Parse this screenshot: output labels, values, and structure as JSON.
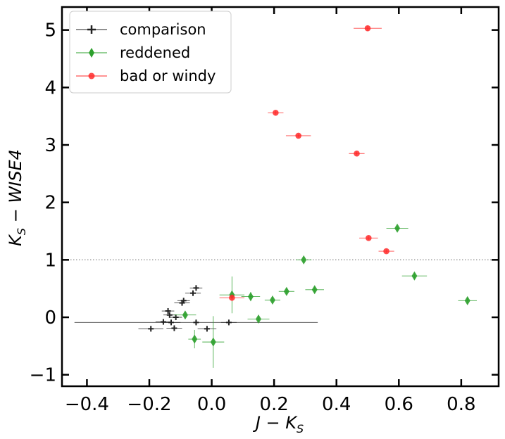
{
  "chart_data": {
    "type": "scatter",
    "title": "",
    "xlabel_main": "J",
    "xlabel_op": " − ",
    "xlabel_sub_base": "K",
    "xlabel_sub": "S",
    "ylabel_main": "K",
    "ylabel_sub": "S",
    "ylabel_op": " − ",
    "ylabel_tail": "WISE4",
    "xlim": [
      -0.48,
      0.92
    ],
    "ylim": [
      -1.2,
      5.4
    ],
    "xticks": [
      -0.4,
      -0.2,
      0.0,
      0.2,
      0.4,
      0.6,
      0.8
    ],
    "xtick_labels": [
      "−0.4",
      "−0.2",
      "0.0",
      "0.2",
      "0.4",
      "0.6",
      "0.8"
    ],
    "yticks": [
      -1,
      0,
      1,
      2,
      3,
      4,
      5
    ],
    "ytick_labels": [
      "−1",
      "0",
      "1",
      "2",
      "3",
      "4",
      "5"
    ],
    "reference_line_y": 1.0,
    "legend_position": "top-left",
    "series": [
      {
        "name": "comparison",
        "color": "#222222",
        "marker": "plus",
        "points": [
          {
            "x": -0.05,
            "y": 0.51,
            "xerr": 0.02,
            "yerr": 0.04
          },
          {
            "x": -0.06,
            "y": 0.42,
            "xerr": 0.025,
            "yerr": 0.04
          },
          {
            "x": -0.09,
            "y": 0.29,
            "xerr": 0.02,
            "yerr": 0.04
          },
          {
            "x": -0.095,
            "y": 0.25,
            "xerr": 0.025,
            "yerr": 0.04
          },
          {
            "x": -0.14,
            "y": 0.11,
            "xerr": 0.02,
            "yerr": 0.05
          },
          {
            "x": -0.135,
            "y": 0.04,
            "xerr": 0.02,
            "yerr": 0.05
          },
          {
            "x": -0.115,
            "y": 0.0,
            "xerr": 0.02,
            "yerr": 0.05
          },
          {
            "x": -0.155,
            "y": -0.08,
            "xerr": 0.025,
            "yerr": 0.05
          },
          {
            "x": -0.13,
            "y": -0.09,
            "xerr": 0.03,
            "yerr": 0.05
          },
          {
            "x": -0.05,
            "y": -0.09,
            "xerr": 0.39,
            "yerr": 0.05
          },
          {
            "x": 0.055,
            "y": -0.09,
            "xerr": 0.025,
            "yerr": 0.05
          },
          {
            "x": -0.12,
            "y": -0.19,
            "xerr": 0.025,
            "yerr": 0.05
          },
          {
            "x": -0.195,
            "y": -0.2,
            "xerr": 0.04,
            "yerr": 0.05
          },
          {
            "x": -0.015,
            "y": -0.2,
            "xerr": 0.03,
            "yerr": 0.05
          }
        ]
      },
      {
        "name": "reddened",
        "color": "#2ca02c",
        "marker": "diamond",
        "points": [
          {
            "x": 0.595,
            "y": 1.55,
            "xerr": 0.035,
            "yerr": 0.04
          },
          {
            "x": 0.295,
            "y": 1.0,
            "xerr": 0.025,
            "yerr": 0.05
          },
          {
            "x": 0.65,
            "y": 0.72,
            "xerr": 0.04,
            "yerr": 0.05
          },
          {
            "x": 0.33,
            "y": 0.48,
            "xerr": 0.03,
            "yerr": 0.05
          },
          {
            "x": 0.24,
            "y": 0.45,
            "xerr": 0.025,
            "yerr": 0.05
          },
          {
            "x": 0.065,
            "y": 0.39,
            "xerr": 0.04,
            "yerr": 0.32
          },
          {
            "x": 0.125,
            "y": 0.36,
            "xerr": 0.03,
            "yerr": 0.08
          },
          {
            "x": 0.195,
            "y": 0.3,
            "xerr": 0.025,
            "yerr": 0.05
          },
          {
            "x": 0.82,
            "y": 0.29,
            "xerr": 0.03,
            "yerr": 0.05
          },
          {
            "x": -0.085,
            "y": 0.04,
            "xerr": 0.035,
            "yerr": 0.06
          },
          {
            "x": 0.15,
            "y": -0.03,
            "xerr": 0.035,
            "yerr": 0.05
          },
          {
            "x": -0.055,
            "y": -0.38,
            "xerr": 0.02,
            "yerr": 0.16
          },
          {
            "x": 0.005,
            "y": -0.43,
            "xerr": 0.035,
            "yerr": 0.45
          }
        ]
      },
      {
        "name": "bad or windy",
        "color": "#ff2a2a",
        "marker": "circle",
        "points": [
          {
            "x": 0.5,
            "y": 5.03,
            "xerr": 0.045,
            "yerr": 0.05
          },
          {
            "x": 0.205,
            "y": 3.56,
            "xerr": 0.025,
            "yerr": 0.03
          },
          {
            "x": 0.278,
            "y": 3.16,
            "xerr": 0.04,
            "yerr": 0.03
          },
          {
            "x": 0.465,
            "y": 2.85,
            "xerr": 0.025,
            "yerr": 0.03
          },
          {
            "x": 0.503,
            "y": 1.38,
            "xerr": 0.03,
            "yerr": 0.03
          },
          {
            "x": 0.56,
            "y": 1.15,
            "xerr": 0.025,
            "yerr": 0.03
          },
          {
            "x": 0.065,
            "y": 0.34,
            "xerr": 0.04,
            "yerr": 0.06
          }
        ]
      }
    ]
  }
}
